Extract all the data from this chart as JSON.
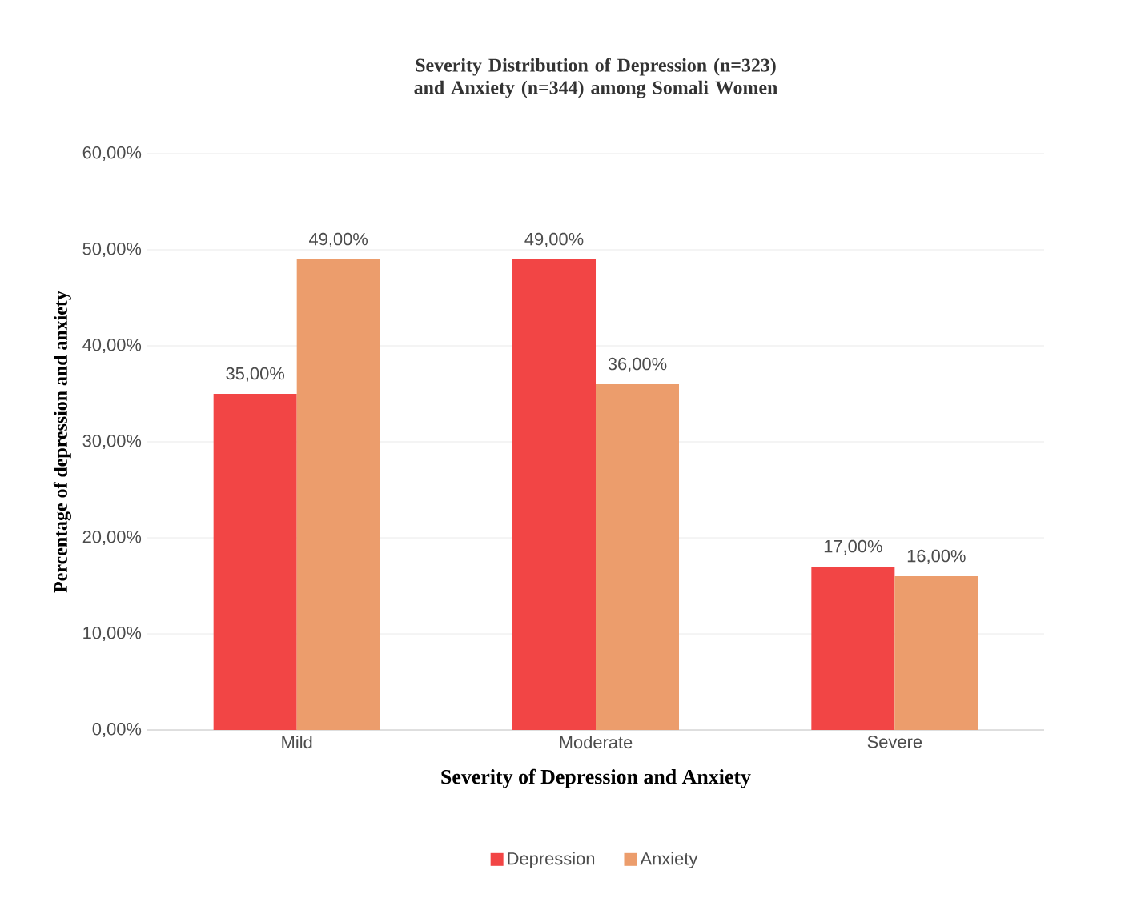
{
  "chart_data": {
    "type": "bar",
    "title": "Severity Distribution of Depression (n=323) and Anxiety (n=344) among Somali Women",
    "xlabel": "Severity of Depression and Anxiety",
    "ylabel": "Percentage of depression and anxiety",
    "categories": [
      "Mild",
      "Moderate",
      "Severe"
    ],
    "series": [
      {
        "name": "Depression",
        "color": "#f24545",
        "values": [
          35,
          49,
          17
        ],
        "value_labels": [
          "35,00%",
          "49,00%",
          "17,00%"
        ]
      },
      {
        "name": "Anxiety",
        "color": "#ec9d6c",
        "values": [
          49,
          36,
          16
        ],
        "value_labels": [
          "49,00%",
          "36,00%",
          "16,00%"
        ]
      }
    ],
    "ylim": [
      0,
      60
    ],
    "yticks": [
      {
        "value": 0,
        "label": "0,00%"
      },
      {
        "value": 10,
        "label": "10,00%"
      },
      {
        "value": 20,
        "label": "20,00%"
      },
      {
        "value": 30,
        "label": "30,00%"
      },
      {
        "value": 40,
        "label": "40,00%"
      },
      {
        "value": 50,
        "label": "50,00%"
      },
      {
        "value": 60,
        "label": "60,00%"
      }
    ],
    "grid": "y",
    "legend": "bottom"
  }
}
